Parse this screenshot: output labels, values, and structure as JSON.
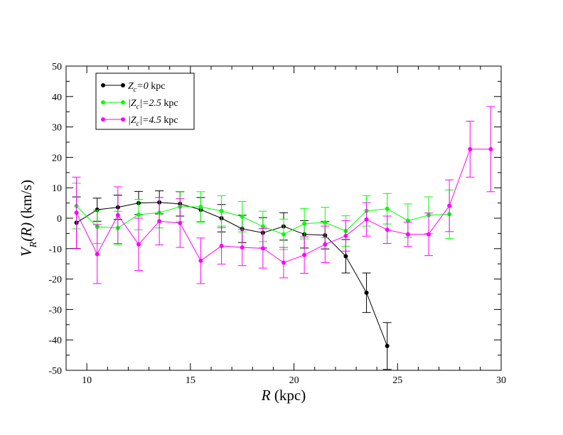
{
  "chart_data": {
    "type": "line",
    "title": "",
    "xlabel_italic": "R",
    "xlabel_rest": " (kpc)",
    "ylabel_italic_main": "V",
    "ylabel_sub": "R",
    "ylabel_italic_arg": "(R)",
    "ylabel_rest": " (km/s)",
    "xlim": [
      9,
      30
    ],
    "ylim": [
      -50,
      50
    ],
    "xticks": [
      10,
      15,
      20,
      25,
      30
    ],
    "yticks": [
      -50,
      -40,
      -30,
      -20,
      -10,
      0,
      10,
      20,
      30,
      40,
      50
    ],
    "legend_position": "top-left",
    "series": [
      {
        "name": "Zc=0 kpc",
        "legend_label_italic": "Z",
        "legend_label_sub": "c",
        "legend_label_rest_italic": "=0",
        "legend_label_unit": " kpc",
        "color": "#000000",
        "x": [
          9.5,
          10.5,
          11.5,
          12.5,
          13.5,
          14.5,
          15.5,
          16.5,
          17.5,
          18.5,
          19.5,
          20.5,
          21.5,
          22.5,
          23.5,
          24.5
        ],
        "y": [
          -1.5,
          2.8,
          3.6,
          5.0,
          5.2,
          4.7,
          2.8,
          0.0,
          -3.5,
          -4.8,
          -2.7,
          -5.3,
          -5.6,
          -12.5,
          -24.5,
          -42.0
        ],
        "err": [
          8.5,
          3.8,
          4.0,
          3.8,
          3.8,
          4.0,
          4.0,
          4.5,
          4.5,
          5.0,
          4.5,
          4.5,
          4.5,
          5.5,
          6.5,
          7.7
        ]
      },
      {
        "name": "|Zc|=2.5 kpc",
        "legend_label_italic": "|Z",
        "legend_label_sub": "c",
        "legend_label_rest_italic": "|=2.5",
        "legend_label_unit": " kpc",
        "color": "#00ff00",
        "x": [
          9.5,
          10.5,
          11.5,
          12.5,
          13.5,
          14.5,
          15.5,
          16.5,
          17.5,
          18.5,
          19.5,
          20.5,
          21.5,
          22.5,
          23.5,
          24.5,
          25.5,
          26.5,
          27.5
        ],
        "y": [
          4.0,
          -2.8,
          -3.2,
          1.2,
          1.8,
          3.8,
          3.7,
          2.4,
          0.5,
          -2.7,
          -5.3,
          -1.8,
          -1.4,
          -4.2,
          2.4,
          3.1,
          -0.8,
          1.0,
          1.3
        ],
        "err": [
          7.5,
          5.5,
          5.5,
          5.0,
          5.0,
          5.0,
          5.0,
          5.0,
          5.0,
          5.0,
          5.0,
          5.0,
          5.0,
          5.0,
          5.0,
          5.0,
          5.5,
          6.0,
          8.0
        ]
      },
      {
        "name": "|Zc|=4.5 kpc",
        "legend_label_italic": "|Z",
        "legend_label_sub": "c",
        "legend_label_rest_italic": "|=4.5",
        "legend_label_unit": " kpc",
        "color": "#ff00ff",
        "x": [
          9.5,
          10.5,
          11.5,
          12.5,
          13.5,
          14.5,
          15.5,
          16.5,
          17.5,
          18.5,
          19.5,
          20.5,
          21.5,
          22.5,
          23.5,
          24.5,
          25.5,
          26.5,
          27.5,
          28.5,
          29.5
        ],
        "y": [
          1.8,
          -11.8,
          1.0,
          -8.6,
          -1.0,
          -1.6,
          -14.0,
          -9.1,
          -9.6,
          -9.9,
          -14.6,
          -12.1,
          -8.6,
          -5.8,
          -0.4,
          -3.8,
          -5.3,
          -5.3,
          4.1,
          22.7,
          22.7
        ],
        "err": [
          11.7,
          9.7,
          9.3,
          8.6,
          7.8,
          8.0,
          7.5,
          6.0,
          6.0,
          6.5,
          5.0,
          6.0,
          6.0,
          5.0,
          5.5,
          4.5,
          4.0,
          7.0,
          8.5,
          9.2,
          14.0
        ]
      }
    ]
  }
}
